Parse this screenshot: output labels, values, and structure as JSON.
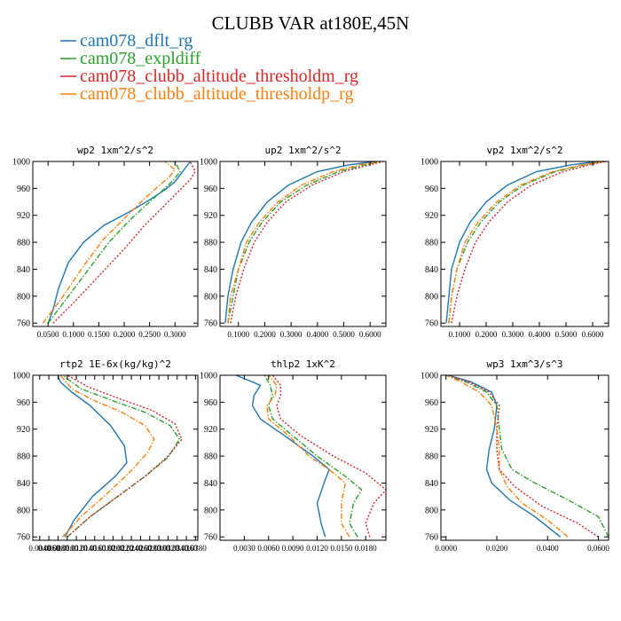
{
  "title": "CLUBB VAR at180E,45N",
  "legend": [
    {
      "label": "cam078_dflt_rg",
      "color": "#1f77b4",
      "dash": "solid"
    },
    {
      "label": "cam078_expldiff",
      "color": "#2ca02c",
      "dash": "dashdot"
    },
    {
      "label": "cam078_clubb_altitude_thresholdm_rg",
      "color": "#d62728",
      "dash": "dotted"
    },
    {
      "label": "cam078_clubb_altitude_thresholdp_rg",
      "color": "#ff7f0e",
      "dash": "dashdot"
    }
  ],
  "chart_data": [
    {
      "type": "line",
      "title": "wp2   1xm^2/s^2",
      "y_ticks": [
        "760",
        "800",
        "840",
        "880",
        "920",
        "960",
        "1000"
      ],
      "x_ticks": [
        {
          "v": 0.05,
          "label": "0.0500"
        },
        {
          "v": 0.1,
          "label": "0.1000"
        },
        {
          "v": 0.15,
          "label": "0.1500"
        },
        {
          "v": 0.2,
          "label": "0.2000"
        },
        {
          "v": 0.25,
          "label": "0.2500"
        },
        {
          "v": 0.3,
          "label": "0.3000"
        }
      ],
      "xlim": [
        0.02,
        0.345
      ],
      "ylim": [
        1000,
        755
      ],
      "series": [
        {
          "x": [
            0.05,
            0.06,
            0.07,
            0.09,
            0.12,
            0.16,
            0.21,
            0.25,
            0.28,
            0.3,
            0.31,
            0.33
          ],
          "y": [
            760,
            780,
            810,
            850,
            880,
            905,
            925,
            943,
            958,
            970,
            980,
            1000
          ]
        },
        {
          "x": [
            0.05,
            0.09,
            0.13,
            0.17,
            0.21,
            0.25,
            0.28,
            0.3,
            0.31,
            0.3
          ],
          "y": [
            760,
            800,
            840,
            880,
            912,
            940,
            960,
            975,
            985,
            1000
          ]
        },
        {
          "x": [
            0.06,
            0.1,
            0.15,
            0.2,
            0.24,
            0.28,
            0.31,
            0.33,
            0.34,
            0.33
          ],
          "y": [
            760,
            790,
            830,
            870,
            905,
            935,
            958,
            973,
            985,
            1000
          ]
        },
        {
          "x": [
            0.04,
            0.08,
            0.12,
            0.16,
            0.2,
            0.24,
            0.27,
            0.29,
            0.3,
            0.28
          ],
          "y": [
            760,
            800,
            845,
            885,
            915,
            945,
            965,
            978,
            988,
            1000
          ]
        }
      ]
    },
    {
      "type": "line",
      "title": "up2   1xm^2/s^2",
      "y_ticks": [
        "760",
        "800",
        "840",
        "880",
        "920",
        "960",
        "1000"
      ],
      "x_ticks": [
        {
          "v": 0.1,
          "label": "0.1000"
        },
        {
          "v": 0.2,
          "label": "0.2000"
        },
        {
          "v": 0.3,
          "label": "0.3000"
        },
        {
          "v": 0.4,
          "label": "0.4000"
        },
        {
          "v": 0.5,
          "label": "0.5000"
        },
        {
          "v": 0.6,
          "label": "0.6000"
        }
      ],
      "xlim": [
        0.03,
        0.66
      ],
      "ylim": [
        1000,
        755
      ],
      "series": [
        {
          "x": [
            0.05,
            0.06,
            0.08,
            0.11,
            0.15,
            0.21,
            0.29,
            0.4,
            0.52,
            0.62
          ],
          "y": [
            760,
            800,
            840,
            880,
            910,
            940,
            965,
            985,
            995,
            1000
          ]
        },
        {
          "x": [
            0.06,
            0.08,
            0.1,
            0.14,
            0.19,
            0.26,
            0.36,
            0.48,
            0.58,
            0.64
          ],
          "y": [
            760,
            800,
            840,
            880,
            910,
            940,
            965,
            985,
            995,
            1000
          ]
        },
        {
          "x": [
            0.07,
            0.09,
            0.12,
            0.16,
            0.21,
            0.28,
            0.38,
            0.5,
            0.6,
            0.65
          ],
          "y": [
            760,
            800,
            840,
            880,
            910,
            940,
            965,
            985,
            995,
            1000
          ]
        },
        {
          "x": [
            0.06,
            0.07,
            0.1,
            0.13,
            0.18,
            0.25,
            0.34,
            0.46,
            0.56,
            0.64
          ],
          "y": [
            760,
            800,
            840,
            880,
            910,
            940,
            965,
            985,
            995,
            1000
          ]
        }
      ]
    },
    {
      "type": "line",
      "title": "vp2   1xm^2/s^2",
      "y_ticks": [
        "760",
        "800",
        "840",
        "880",
        "920",
        "960",
        "1000"
      ],
      "x_ticks": [
        {
          "v": 0.1,
          "label": "0.1000"
        },
        {
          "v": 0.2,
          "label": "0.2000"
        },
        {
          "v": 0.3,
          "label": "0.3000"
        },
        {
          "v": 0.4,
          "label": "0.4000"
        },
        {
          "v": 0.5,
          "label": "0.5000"
        },
        {
          "v": 0.6,
          "label": "0.6000"
        }
      ],
      "xlim": [
        0.03,
        0.66
      ],
      "ylim": [
        1000,
        755
      ],
      "series": [
        {
          "x": [
            0.05,
            0.06,
            0.07,
            0.1,
            0.14,
            0.2,
            0.28,
            0.39,
            0.52,
            0.62
          ],
          "y": [
            760,
            800,
            840,
            880,
            910,
            940,
            965,
            985,
            995,
            1000
          ]
        },
        {
          "x": [
            0.06,
            0.07,
            0.09,
            0.13,
            0.18,
            0.25,
            0.34,
            0.46,
            0.57,
            0.64
          ],
          "y": [
            760,
            800,
            840,
            880,
            910,
            940,
            965,
            985,
            995,
            1000
          ]
        },
        {
          "x": [
            0.07,
            0.09,
            0.12,
            0.16,
            0.21,
            0.28,
            0.37,
            0.49,
            0.59,
            0.65
          ],
          "y": [
            760,
            800,
            840,
            880,
            910,
            940,
            965,
            985,
            995,
            1000
          ]
        },
        {
          "x": [
            0.06,
            0.07,
            0.09,
            0.12,
            0.17,
            0.24,
            0.33,
            0.45,
            0.56,
            0.64
          ],
          "y": [
            760,
            800,
            840,
            880,
            910,
            940,
            965,
            985,
            995,
            1000
          ]
        }
      ]
    },
    {
      "type": "line",
      "title": "rtp2   1E-6x(kg/kg)^2",
      "y_ticks": [
        "760",
        "800",
        "840",
        "880",
        "920",
        "960",
        "1000"
      ],
      "x_ticks": [
        {
          "v": 0.004,
          "label": "0.0040"
        },
        {
          "v": 0.006,
          "label": "0.0060"
        },
        {
          "v": 0.008,
          "label": "0.0080"
        },
        {
          "v": 0.01,
          "label": "0.0100"
        },
        {
          "v": 0.012,
          "label": "0.0120"
        },
        {
          "v": 0.014,
          "label": "0.0140"
        },
        {
          "v": 0.016,
          "label": "0.0160"
        },
        {
          "v": 0.018,
          "label": "0.0180"
        },
        {
          "v": 0.02,
          "label": "0.0200"
        },
        {
          "v": 0.022,
          "label": "0.0220"
        },
        {
          "v": 0.024,
          "label": "0.0240"
        },
        {
          "v": 0.026,
          "label": "0.0260"
        },
        {
          "v": 0.028,
          "label": "0.0280"
        },
        {
          "v": 0.03,
          "label": "0.0300"
        },
        {
          "v": 0.032,
          "label": "0.0320"
        },
        {
          "v": 0.034,
          "label": "0.0340"
        },
        {
          "v": 0.036,
          "label": "0.0360"
        },
        {
          "v": 0.038,
          "label": "0.0380"
        }
      ],
      "xlim": [
        0.0025,
        0.0385
      ],
      "ylim": [
        1000,
        755
      ],
      "series": [
        {
          "x": [
            0.0095,
            0.0115,
            0.0155,
            0.0205,
            0.023,
            0.0225,
            0.0195,
            0.015,
            0.011,
            0.0085,
            0.008
          ],
          "y": [
            760,
            785,
            820,
            850,
            870,
            895,
            925,
            955,
            975,
            990,
            1000
          ]
        },
        {
          "x": [
            0.01,
            0.015,
            0.021,
            0.027,
            0.032,
            0.0345,
            0.0325,
            0.027,
            0.02,
            0.013,
            0.009
          ],
          "y": [
            760,
            790,
            820,
            850,
            878,
            905,
            925,
            945,
            962,
            980,
            1000
          ]
        },
        {
          "x": [
            0.01,
            0.015,
            0.021,
            0.027,
            0.032,
            0.035,
            0.0335,
            0.0285,
            0.0215,
            0.0145,
            0.01
          ],
          "y": [
            760,
            790,
            820,
            850,
            880,
            905,
            928,
            948,
            965,
            983,
            1000
          ]
        },
        {
          "x": [
            0.009,
            0.013,
            0.018,
            0.0235,
            0.0275,
            0.029,
            0.027,
            0.022,
            0.016,
            0.011,
            0.0085
          ],
          "y": [
            760,
            790,
            820,
            855,
            885,
            905,
            925,
            945,
            962,
            980,
            1000
          ]
        }
      ]
    },
    {
      "type": "line",
      "title": "thlp2   1xK^2",
      "y_ticks": [
        "760",
        "800",
        "840",
        "880",
        "920",
        "960",
        "1000"
      ],
      "x_ticks": [
        {
          "v": 0.003,
          "label": "0.0030"
        },
        {
          "v": 0.006,
          "label": "0.0060"
        },
        {
          "v": 0.009,
          "label": "0.0090"
        },
        {
          "v": 0.012,
          "label": "0.0120"
        },
        {
          "v": 0.015,
          "label": "0.0150"
        },
        {
          "v": 0.018,
          "label": "0.0180"
        }
      ],
      "xlim": [
        0.0,
        0.0205
      ],
      "ylim": [
        1000,
        755
      ],
      "series": [
        {
          "x": [
            0.013,
            0.0125,
            0.012,
            0.013,
            0.0135,
            0.0115,
            0.008,
            0.005,
            0.004,
            0.0042,
            0.005,
            0.002
          ],
          "y": [
            760,
            780,
            810,
            845,
            860,
            880,
            910,
            935,
            955,
            970,
            985,
            1000
          ]
        },
        {
          "x": [
            0.017,
            0.016,
            0.0165,
            0.0175,
            0.0155,
            0.012,
            0.009,
            0.0065,
            0.006,
            0.0065,
            0.0062,
            0.0055
          ],
          "y": [
            760,
            780,
            810,
            830,
            850,
            880,
            910,
            935,
            955,
            970,
            985,
            1000
          ]
        },
        {
          "x": [
            0.0185,
            0.018,
            0.019,
            0.0205,
            0.018,
            0.014,
            0.01,
            0.0075,
            0.007,
            0.0075,
            0.0075,
            0.0065
          ],
          "y": [
            760,
            780,
            810,
            830,
            855,
            880,
            910,
            935,
            955,
            970,
            985,
            1000
          ]
        },
        {
          "x": [
            0.016,
            0.015,
            0.015,
            0.0155,
            0.0135,
            0.011,
            0.0085,
            0.006,
            0.0058,
            0.0068,
            0.007,
            0.006
          ],
          "y": [
            760,
            780,
            810,
            840,
            860,
            880,
            910,
            935,
            955,
            970,
            985,
            1000
          ]
        }
      ]
    },
    {
      "type": "line",
      "title": "wp3   1xm^3/s^3",
      "y_ticks": [
        "760",
        "800",
        "840",
        "880",
        "920",
        "960",
        "1000"
      ],
      "x_ticks": [
        {
          "v": 0.0,
          "label": "0.0000"
        },
        {
          "v": 0.02,
          "label": "0.0200"
        },
        {
          "v": 0.04,
          "label": "0.0400"
        },
        {
          "v": 0.06,
          "label": "0.0600"
        }
      ],
      "xlim": [
        -0.002,
        0.064
      ],
      "ylim": [
        1000,
        755
      ],
      "series": [
        {
          "x": [
            0.045,
            0.035,
            0.025,
            0.018,
            0.016,
            0.017,
            0.019,
            0.02,
            0.018,
            0.01,
            0.001
          ],
          "y": [
            760,
            790,
            815,
            840,
            860,
            890,
            920,
            955,
            975,
            990,
            1000
          ]
        },
        {
          "x": [
            0.064,
            0.06,
            0.048,
            0.035,
            0.026,
            0.022,
            0.021,
            0.02,
            0.016,
            0.008,
            0.0
          ],
          "y": [
            760,
            790,
            815,
            840,
            860,
            890,
            920,
            955,
            975,
            990,
            1000
          ]
        },
        {
          "x": [
            0.06,
            0.052,
            0.038,
            0.027,
            0.021,
            0.02,
            0.02,
            0.021,
            0.017,
            0.009,
            0.0
          ],
          "y": [
            760,
            780,
            805,
            835,
            860,
            890,
            920,
            955,
            975,
            990,
            1000
          ]
        },
        {
          "x": [
            0.048,
            0.04,
            0.03,
            0.024,
            0.021,
            0.021,
            0.02,
            0.018,
            0.013,
            0.006,
            0.0
          ],
          "y": [
            760,
            785,
            810,
            835,
            860,
            890,
            920,
            955,
            975,
            990,
            1000
          ]
        }
      ]
    }
  ]
}
